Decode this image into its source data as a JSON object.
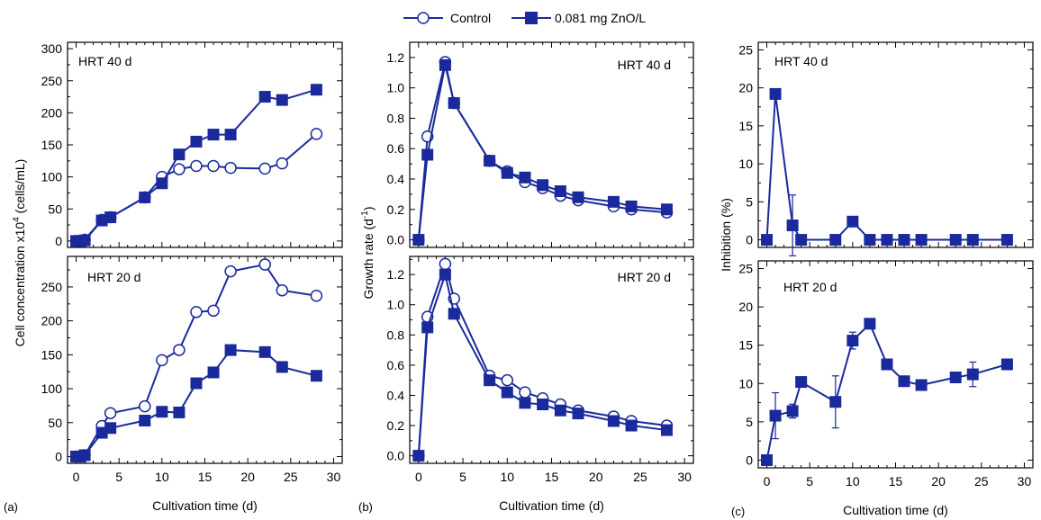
{
  "legend": {
    "control": "Control",
    "zno": "0.081 mg ZnO/L"
  },
  "panel_letters": [
    "(a)",
    "(b)",
    "(c)"
  ],
  "colors": {
    "series": "#1a2a9c",
    "axis": "#000000"
  },
  "chart_data": [
    {
      "id": "a-top",
      "type": "line",
      "panel": "(a)",
      "annotation": "HRT 40 d",
      "ylabel": "Cell concentration  x10^4 (cells/mL)",
      "ylim": [
        -10,
        310
      ],
      "yticks": [
        0,
        50,
        100,
        150,
        200,
        250,
        300
      ],
      "xlim": [
        -1,
        31
      ],
      "xticks": [],
      "series": [
        {
          "name": "Control",
          "marker": "open-circle",
          "x": [
            0,
            0.5,
            1,
            3,
            4,
            8,
            10,
            12,
            14,
            16,
            18,
            22,
            24,
            28
          ],
          "y": [
            0,
            0,
            2,
            33,
            37,
            68,
            100,
            112,
            117,
            117,
            114,
            113,
            121,
            167
          ]
        },
        {
          "name": "0.081 mg ZnO/L",
          "marker": "filled-square",
          "x": [
            0,
            0.5,
            1,
            3,
            4,
            8,
            10,
            12,
            14,
            16,
            18,
            22,
            24,
            28
          ],
          "y": [
            0,
            0,
            1,
            32,
            37,
            68,
            90,
            135,
            155,
            166,
            166,
            225,
            220,
            236
          ]
        }
      ]
    },
    {
      "id": "a-bottom",
      "type": "line",
      "panel": "(a)",
      "annotation": "HRT 20 d",
      "xlabel": "Cultivation time (d)",
      "ylim": [
        -10,
        295
      ],
      "yticks": [
        0,
        50,
        100,
        150,
        200,
        250
      ],
      "xlim": [
        -1,
        31
      ],
      "xticks": [
        0,
        5,
        10,
        15,
        20,
        25,
        30
      ],
      "series": [
        {
          "name": "Control",
          "marker": "open-circle",
          "x": [
            0,
            0.5,
            1,
            3,
            4,
            8,
            10,
            12,
            14,
            16,
            18,
            22,
            24,
            28
          ],
          "y": [
            0,
            0,
            2,
            45,
            64,
            74,
            142,
            157,
            213,
            215,
            273,
            283,
            245,
            237
          ]
        },
        {
          "name": "0.081 mg ZnO/L",
          "marker": "filled-square",
          "x": [
            0,
            0.5,
            1,
            3,
            4,
            8,
            10,
            12,
            14,
            16,
            18,
            22,
            24,
            28
          ],
          "y": [
            0,
            0,
            2,
            35,
            42,
            53,
            66,
            65,
            108,
            124,
            157,
            154,
            132,
            119
          ]
        }
      ]
    },
    {
      "id": "b-top",
      "type": "line",
      "panel": "(b)",
      "annotation": "HRT 40 d",
      "ylabel": "Growth rate (d^-1)",
      "ylim": [
        -0.05,
        1.3
      ],
      "yticks": [
        0.0,
        0.2,
        0.4,
        0.6,
        0.8,
        1.0,
        1.2
      ],
      "xlim": [
        -1,
        31
      ],
      "xticks": [],
      "series": [
        {
          "name": "Control",
          "marker": "open-circle",
          "x": [
            0,
            1,
            3,
            4,
            8,
            10,
            12,
            14,
            16,
            18,
            22,
            24,
            28
          ],
          "y": [
            0.0,
            0.68,
            1.17,
            0.9,
            0.52,
            0.45,
            0.38,
            0.34,
            0.29,
            0.26,
            0.22,
            0.2,
            0.18
          ]
        },
        {
          "name": "0.081 mg ZnO/L",
          "marker": "filled-square",
          "x": [
            0,
            1,
            3,
            4,
            8,
            10,
            12,
            14,
            16,
            18,
            22,
            24,
            28
          ],
          "y": [
            0.0,
            0.56,
            1.15,
            0.9,
            0.52,
            0.44,
            0.41,
            0.36,
            0.32,
            0.28,
            0.25,
            0.22,
            0.2
          ]
        }
      ]
    },
    {
      "id": "b-bottom",
      "type": "line",
      "panel": "(b)",
      "annotation": "HRT 20 d",
      "xlabel": "Cultivation time (d)",
      "ylim": [
        -0.05,
        1.32
      ],
      "yticks": [
        0.0,
        0.2,
        0.4,
        0.6,
        0.8,
        1.0,
        1.2
      ],
      "xlim": [
        -1,
        31
      ],
      "xticks": [
        0,
        5,
        10,
        15,
        20,
        25,
        30
      ],
      "series": [
        {
          "name": "Control",
          "marker": "open-circle",
          "x": [
            0,
            1,
            3,
            4,
            8,
            10,
            12,
            14,
            16,
            18,
            22,
            24,
            28
          ],
          "y": [
            0.0,
            0.92,
            1.27,
            1.04,
            0.53,
            0.5,
            0.42,
            0.38,
            0.34,
            0.3,
            0.26,
            0.23,
            0.2
          ]
        },
        {
          "name": "0.081 mg ZnO/L",
          "marker": "filled-square",
          "x": [
            0,
            1,
            3,
            4,
            8,
            10,
            12,
            14,
            16,
            18,
            22,
            24,
            28
          ],
          "y": [
            0.0,
            0.85,
            1.2,
            0.94,
            0.5,
            0.42,
            0.35,
            0.34,
            0.3,
            0.28,
            0.23,
            0.2,
            0.17
          ]
        }
      ]
    },
    {
      "id": "c-top",
      "type": "line",
      "panel": "(c)",
      "annotation": "HRT 40 d",
      "ylabel": "Inhibition (%)",
      "ylim": [
        -1,
        26
      ],
      "yticks": [
        0,
        5,
        10,
        15,
        20,
        25
      ],
      "xlim": [
        -1,
        31
      ],
      "xticks": [],
      "series": [
        {
          "name": "0.081 mg ZnO/L",
          "marker": "filled-square",
          "x": [
            0,
            1,
            3,
            4,
            8,
            10,
            12,
            14,
            16,
            18,
            22,
            24,
            28
          ],
          "y": [
            0,
            19.2,
            1.9,
            0,
            0,
            2.4,
            0,
            0,
            0,
            0,
            0,
            0,
            0
          ],
          "err": [
            0,
            0,
            4,
            0,
            0,
            0,
            0,
            0,
            0,
            0,
            0.4,
            0,
            0
          ]
        }
      ]
    },
    {
      "id": "c-bottom",
      "type": "line",
      "panel": "(c)",
      "annotation": "HRT 20 d",
      "xlabel": "Cultivation  time (d)",
      "ylim": [
        -1,
        26
      ],
      "yticks": [
        0,
        5,
        10,
        15,
        20,
        25
      ],
      "xlim": [
        -1,
        31
      ],
      "xticks": [
        0,
        5,
        10,
        15,
        20,
        25,
        30
      ],
      "series": [
        {
          "name": "0.081 mg ZnO/L",
          "marker": "filled-square",
          "x": [
            0,
            1,
            3,
            4,
            8,
            10,
            12,
            14,
            16,
            18,
            22,
            24,
            28
          ],
          "y": [
            0,
            5.8,
            6.4,
            10.2,
            7.6,
            15.6,
            17.8,
            12.5,
            10.3,
            9.8,
            10.8,
            11.2,
            12.5
          ],
          "err": [
            0,
            3,
            0.9,
            0,
            3.4,
            1.1,
            0.4,
            0,
            0,
            0,
            0,
            1.6,
            0
          ]
        }
      ]
    }
  ]
}
